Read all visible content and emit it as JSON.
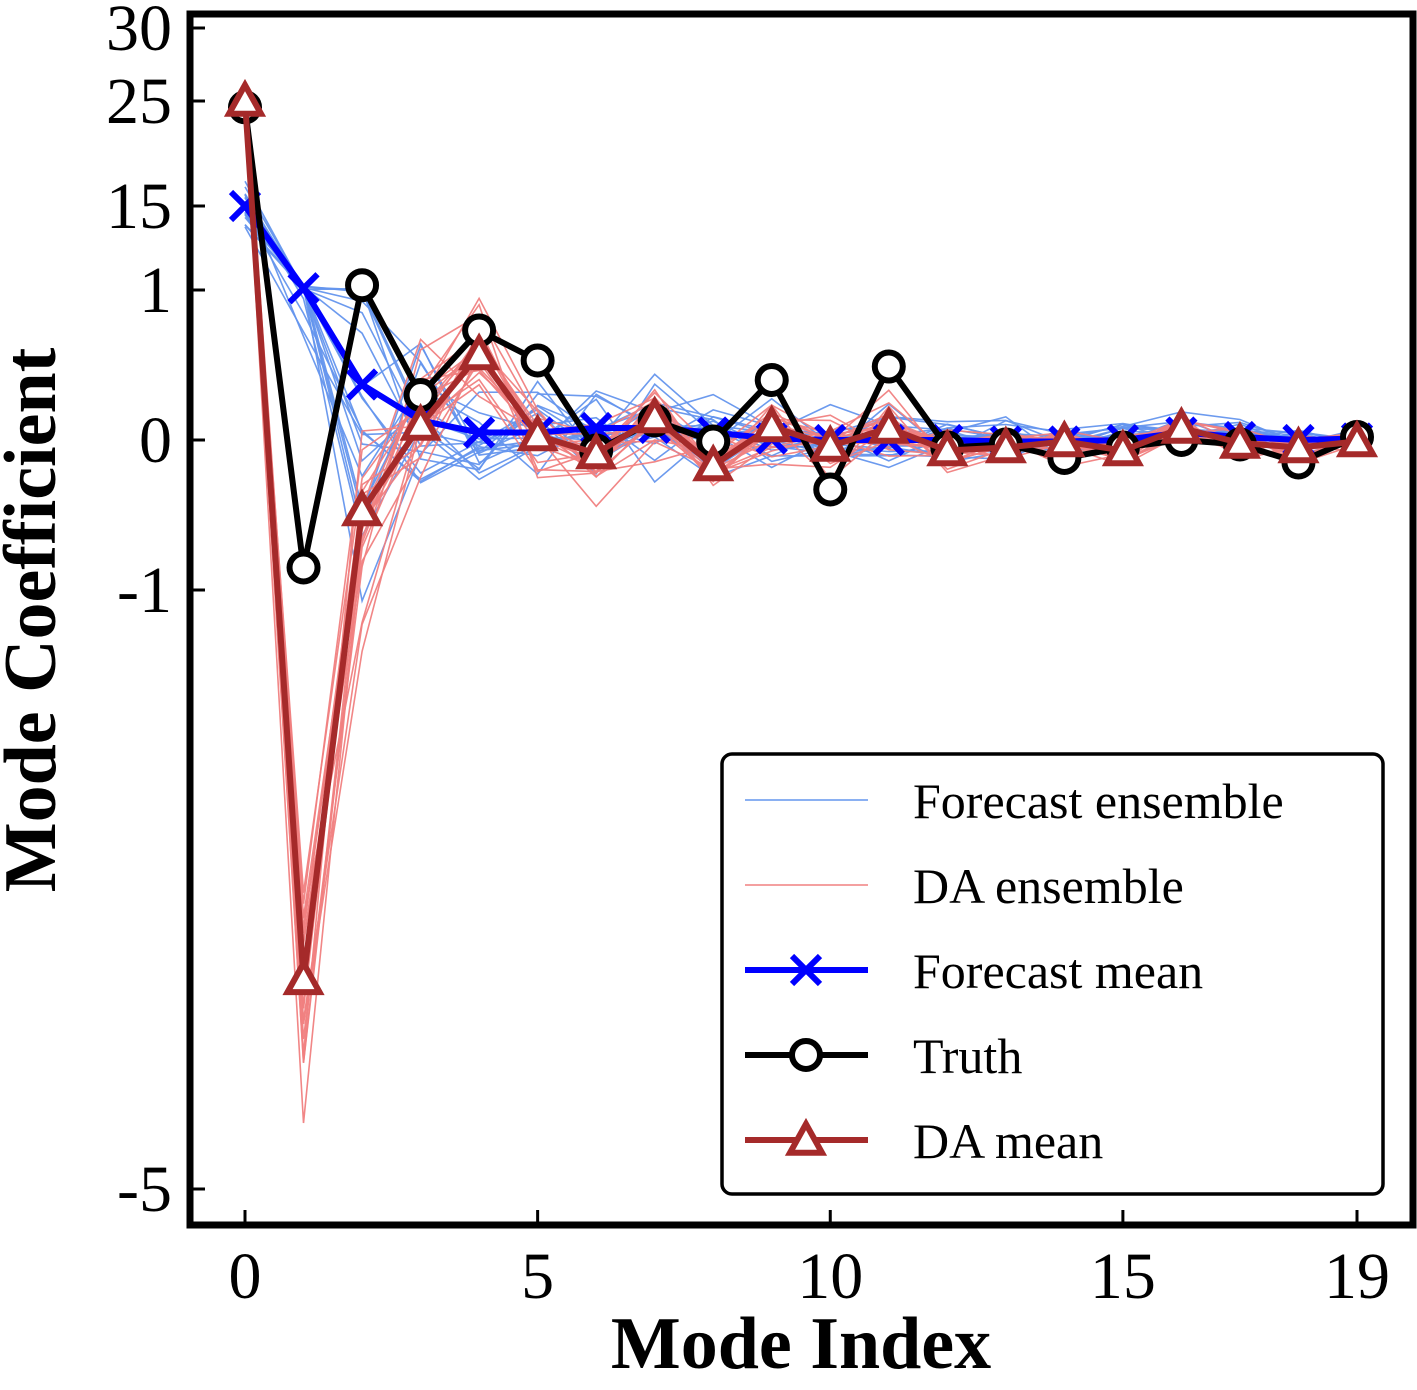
{
  "chart_data": {
    "type": "line",
    "title": "",
    "xlabel": "Mode Index",
    "ylabel": "Mode Coefficient",
    "x": [
      0,
      1,
      2,
      3,
      4,
      5,
      6,
      7,
      8,
      9,
      10,
      11,
      12,
      13,
      14,
      15,
      16,
      17,
      18,
      19
    ],
    "xlim": [
      -1,
      20
    ],
    "x_ticks": [
      0,
      5,
      10,
      15,
      19
    ],
    "x_tick_labels": [
      "0",
      "5",
      "10",
      "15",
      "19"
    ],
    "y_scale": "piecewise (compressed above 1)",
    "ylim": [
      -5.6,
      31
    ],
    "y_ticks": [
      30,
      25,
      15,
      1,
      0,
      -1,
      -5
    ],
    "y_tick_labels": [
      "30",
      "25",
      "15",
      "1",
      "0",
      "-1",
      "-5"
    ],
    "grid": false,
    "legend_position": "lower-right",
    "series": [
      {
        "name": "Forecast mean",
        "color": "#0000ff",
        "marker": "x",
        "values": [
          15,
          1.3,
          0.37,
          0.13,
          0.05,
          0.05,
          0.08,
          0.08,
          0.05,
          0.01,
          0.0,
          0.0,
          0.0,
          -0.01,
          -0.01,
          0.0,
          0.05,
          0.02,
          0.0,
          0.01
        ]
      },
      {
        "name": "Truth",
        "color": "#000000",
        "marker": "o",
        "values": [
          24.4,
          -0.85,
          1.8,
          0.3,
          0.73,
          0.53,
          -0.07,
          0.13,
          -0.01,
          0.4,
          -0.33,
          0.49,
          -0.05,
          -0.03,
          -0.12,
          -0.05,
          0.0,
          -0.03,
          -0.15,
          0.02
        ]
      },
      {
        "name": "DA mean",
        "color": "#a52a2a",
        "marker": "^",
        "values": [
          25,
          -3.6,
          -0.47,
          0.1,
          0.57,
          0.03,
          -0.09,
          0.15,
          -0.17,
          0.09,
          -0.04,
          0.08,
          -0.07,
          -0.05,
          -0.01,
          -0.07,
          0.08,
          -0.02,
          -0.05,
          -0.01
        ]
      }
    ],
    "ensembles": [
      {
        "name": "Forecast ensemble",
        "color": "#6495ed",
        "members": 20,
        "center": "Forecast mean",
        "spread": [
          3,
          0.6,
          1.2,
          0.5,
          0.35,
          0.3,
          0.25,
          0.25,
          0.22,
          0.2,
          0.2,
          0.18,
          0.15,
          0.12,
          0.12,
          0.1,
          0.1,
          0.08,
          0.08,
          0.06
        ]
      },
      {
        "name": "DA ensemble",
        "color": "#f08080",
        "members": 20,
        "center": "DA mean",
        "spread": [
          1.2,
          0.9,
          0.6,
          0.4,
          0.3,
          0.25,
          0.2,
          0.22,
          0.2,
          0.18,
          0.18,
          0.16,
          0.14,
          0.12,
          0.14,
          0.1,
          0.1,
          0.08,
          0.08,
          0.06
        ]
      }
    ]
  },
  "legend": {
    "items": [
      {
        "label": "Forecast ensemble",
        "kind": "thin-line",
        "color": "#6495ed"
      },
      {
        "label": "DA ensemble",
        "kind": "thin-line",
        "color": "#f08080"
      },
      {
        "label": "Forecast mean",
        "kind": "x",
        "color": "#0000ff"
      },
      {
        "label": "Truth",
        "kind": "o",
        "color": "#000000"
      },
      {
        "label": "DA mean",
        "kind": "^",
        "color": "#a52a2a"
      }
    ]
  }
}
